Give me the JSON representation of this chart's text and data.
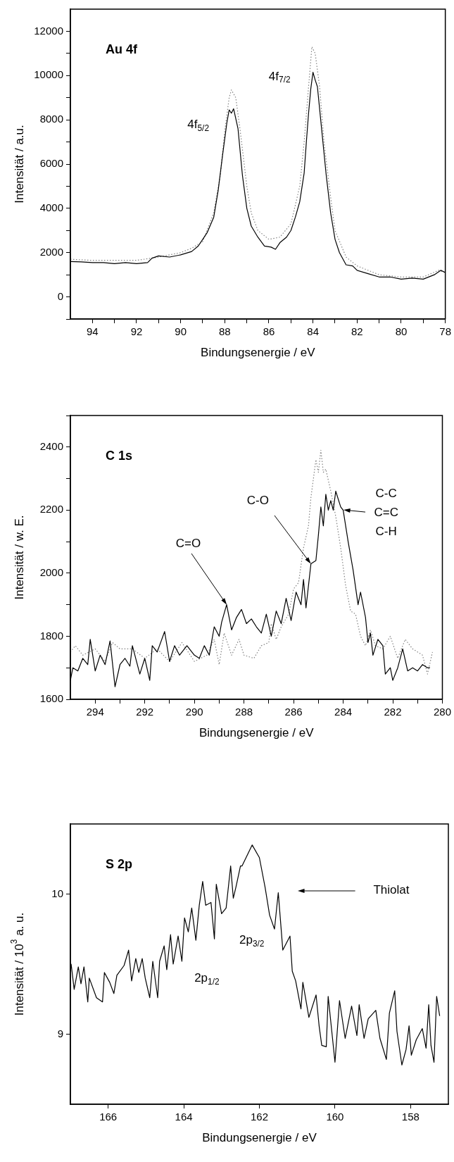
{
  "chart_data": [
    {
      "type": "line",
      "title": "Au 4f",
      "xlabel": "Bindungsenergie / eV",
      "ylabel": "Intensität / a.u.",
      "marker": "none",
      "xlim": [
        95,
        78
      ],
      "xticks": [
        94,
        {
          "value": 93,
          "label": null
        },
        92,
        {
          "value": 91,
          "label": null
        },
        90,
        {
          "value": 89,
          "label": null
        },
        88,
        {
          "value": 87,
          "label": null
        },
        86,
        {
          "value": 85,
          "label": null
        },
        84,
        {
          "value": 83,
          "label": null
        },
        82,
        {
          "value": 81,
          "label": null
        },
        80,
        {
          "value": 79,
          "label": null
        },
        78
      ],
      "ylim": [
        -1000,
        13000
      ],
      "yticks": [
        {
          "value": -1000,
          "label": null
        },
        0,
        {
          "value": 1000,
          "label": null
        },
        2000,
        {
          "value": 3000,
          "label": null
        },
        4000,
        {
          "value": 5000,
          "label": null
        },
        6000,
        {
          "value": 7000,
          "label": null
        },
        8000,
        {
          "value": 9000,
          "label": null
        },
        10000,
        {
          "value": 11000,
          "label": null
        },
        12000
      ],
      "series": [
        {
          "color": "#000000",
          "line_style": "solid",
          "x": [
            95,
            94.5,
            94,
            93.5,
            93,
            92.5,
            92,
            91.5,
            91.3,
            91,
            90.5,
            90,
            89.5,
            89.2,
            89,
            88.8,
            88.5,
            88.3,
            88.1,
            87.9,
            87.8,
            87.7,
            87.6,
            87.4,
            87.2,
            87,
            86.8,
            86.5,
            86.2,
            85.9,
            85.7,
            85.5,
            85.2,
            85,
            84.8,
            84.6,
            84.4,
            84.3,
            84.2,
            84.1,
            84,
            83.9,
            83.8,
            83.6,
            83.4,
            83.2,
            83,
            82.8,
            82.5,
            82.2,
            82,
            81.5,
            81,
            80.5,
            80,
            79.5,
            79,
            78.5,
            78.2,
            78
          ],
          "values": [
            1600,
            1580,
            1550,
            1550,
            1500,
            1550,
            1500,
            1550,
            1750,
            1850,
            1800,
            1900,
            2050,
            2300,
            2600,
            2900,
            3600,
            4800,
            6400,
            7900,
            8450,
            8300,
            8500,
            7600,
            5500,
            4000,
            3200,
            2700,
            2300,
            2250,
            2150,
            2450,
            2700,
            3000,
            3600,
            4300,
            5600,
            7000,
            8300,
            9400,
            10150,
            9800,
            9500,
            7500,
            5500,
            3800,
            2600,
            2000,
            1450,
            1400,
            1200,
            1050,
            900,
            900,
            800,
            850,
            800,
            1000,
            1200,
            1100
          ]
        },
        {
          "color": "#808080",
          "line_style": "dotted",
          "x": [
            95,
            94,
            93,
            92,
            91,
            90,
            89.5,
            89,
            88.5,
            88.2,
            88,
            87.8,
            87.7,
            87.5,
            87.3,
            87,
            86.8,
            86.5,
            86,
            85.5,
            85,
            84.6,
            84.4,
            84.2,
            84.05,
            83.9,
            83.7,
            83.5,
            83.2,
            83,
            82.5,
            82,
            81,
            80,
            79,
            78.3,
            78
          ],
          "values": [
            1700,
            1650,
            1650,
            1650,
            1800,
            2000,
            2200,
            2500,
            3800,
            5500,
            7500,
            9000,
            9350,
            9000,
            7500,
            5000,
            3800,
            3000,
            2600,
            2700,
            3300,
            5000,
            7000,
            9500,
            11300,
            11000,
            9500,
            7000,
            4500,
            3000,
            1800,
            1400,
            1000,
            900,
            900,
            1200,
            1100
          ]
        }
      ],
      "annotations": [
        "4f$_{5/2}$",
        "4f$_{7/2}$"
      ]
    },
    {
      "type": "line",
      "title": "C 1s",
      "xlabel": "Bindungsenergie / eV",
      "ylabel": "Intensität / w. E.",
      "marker": "none",
      "xlim": [
        295,
        280
      ],
      "xticks": [
        294,
        {
          "value": 293,
          "label": null
        },
        292,
        {
          "value": 291,
          "label": null
        },
        290,
        {
          "value": 289,
          "label": null
        },
        288,
        {
          "value": 287,
          "label": null
        },
        286,
        {
          "value": 285,
          "label": null
        },
        284,
        {
          "value": 283,
          "label": null
        },
        282,
        {
          "value": 281,
          "label": null
        },
        280
      ],
      "ylim": [
        1600,
        2500
      ],
      "yticks": [
        1600,
        {
          "value": 1700,
          "label": null
        },
        1800,
        {
          "value": 1900,
          "label": null
        },
        2000,
        {
          "value": 2100,
          "label": null
        },
        2200,
        {
          "value": 2300,
          "label": null
        },
        2400,
        {
          "value": 2500,
          "label": null
        }
      ],
      "series": [
        {
          "color": "#000000",
          "line_style": "solid",
          "x": [
            295,
            294.9,
            294.7,
            294.5,
            294.3,
            294.2,
            294,
            293.8,
            293.6,
            293.4,
            293.2,
            293,
            292.8,
            292.6,
            292.5,
            292.2,
            292,
            291.8,
            291.7,
            291.5,
            291.2,
            291,
            290.8,
            290.6,
            290.3,
            290,
            289.8,
            289.6,
            289.4,
            289.2,
            289,
            288.9,
            288.7,
            288.5,
            288.3,
            288.1,
            287.9,
            287.7,
            287.5,
            287.3,
            287.1,
            286.9,
            286.7,
            286.5,
            286.3,
            286.1,
            285.9,
            285.7,
            285.6,
            285.5,
            285.3,
            285.1,
            285,
            284.9,
            284.8,
            284.7,
            284.6,
            284.5,
            284.4,
            284.3,
            284.1,
            284,
            283.8,
            283.6,
            283.4,
            283.3,
            283.1,
            283,
            282.9,
            282.8,
            282.6,
            282.4,
            282.3,
            282.1,
            282,
            281.8,
            281.6,
            281.4,
            281.2,
            281,
            280.8,
            280.6,
            280.5
          ],
          "values": [
            1660,
            1700,
            1690,
            1730,
            1710,
            1790,
            1690,
            1740,
            1710,
            1785,
            1640,
            1710,
            1730,
            1705,
            1770,
            1680,
            1730,
            1660,
            1770,
            1750,
            1815,
            1720,
            1770,
            1740,
            1770,
            1740,
            1730,
            1770,
            1740,
            1830,
            1800,
            1845,
            1900,
            1820,
            1860,
            1885,
            1840,
            1855,
            1830,
            1810,
            1870,
            1800,
            1880,
            1840,
            1920,
            1850,
            1940,
            1900,
            1980,
            1890,
            2030,
            2040,
            2120,
            2210,
            2150,
            2250,
            2200,
            2230,
            2200,
            2260,
            2210,
            2200,
            2100,
            2010,
            1900,
            1940,
            1860,
            1780,
            1810,
            1740,
            1790,
            1770,
            1680,
            1700,
            1660,
            1700,
            1760,
            1690,
            1700,
            1690,
            1710,
            1700,
            1700
          ]
        },
        {
          "color": "#808080",
          "line_style": "dotted",
          "x": [
            295,
            294.8,
            294.5,
            294,
            293.6,
            293.3,
            293,
            292.5,
            292,
            291.5,
            291,
            290.5,
            290,
            289.5,
            289.2,
            289,
            288.8,
            288.5,
            288.2,
            288,
            287.6,
            287.3,
            287,
            286.9,
            286.7,
            286.5,
            286.2,
            286,
            285.8,
            285.6,
            285.4,
            285.3,
            285.1,
            285,
            284.9,
            284.8,
            284.7,
            284.5,
            284.3,
            284.1,
            283.9,
            283.7,
            283.5,
            283.3,
            283.1,
            282.9,
            282.7,
            282.4,
            282.1,
            281.8,
            281.5,
            281.2,
            281,
            280.8,
            280.6,
            280.4
          ],
          "values": [
            1750,
            1770,
            1740,
            1760,
            1720,
            1780,
            1760,
            1760,
            1730,
            1760,
            1720,
            1780,
            1720,
            1740,
            1790,
            1710,
            1810,
            1740,
            1790,
            1740,
            1730,
            1770,
            1780,
            1840,
            1790,
            1830,
            1870,
            1950,
            1970,
            2080,
            2150,
            2240,
            2360,
            2320,
            2390,
            2320,
            2330,
            2260,
            2180,
            2080,
            1960,
            1880,
            1870,
            1800,
            1770,
            1820,
            1770,
            1760,
            1800,
            1730,
            1790,
            1760,
            1750,
            1740,
            1680,
            1750
          ]
        }
      ],
      "annotations": [
        {
          "text": "C=O",
          "x": 288.7,
          "y": 1900
        },
        {
          "text": "C-O",
          "x": 285.3,
          "y": 2030
        },
        {
          "text": "C-C\nC=C\nC-H",
          "x": 284,
          "y": 2200
        }
      ]
    },
    {
      "type": "line",
      "title": "S 2p",
      "xlabel": "Bindungsenergie / eV",
      "ylabel": "Intensität / 10$^{3}$ a. u.",
      "marker": "none",
      "xlim": [
        167,
        157
      ],
      "xticks": [
        166,
        164,
        162,
        160,
        158
      ],
      "ylim": [
        8.5,
        10.5
      ],
      "yticks": [
        9,
        10
      ],
      "series": [
        {
          "color": "#000000",
          "line_style": "solid",
          "x": [
            167,
            166.98,
            166.9,
            166.79,
            166.72,
            166.64,
            166.54,
            166.5,
            166.31,
            166.15,
            166.1,
            165.96,
            165.85,
            165.77,
            165.58,
            165.46,
            165.38,
            165.27,
            165.19,
            165.1,
            165.02,
            164.9,
            164.82,
            164.69,
            164.64,
            164.52,
            164.45,
            164.35,
            164.28,
            164.15,
            164.05,
            163.98,
            163.88,
            163.79,
            163.68,
            163.59,
            163.5,
            163.42,
            163.28,
            163.19,
            163.14,
            163,
            162.88,
            162.76,
            162.69,
            162.62,
            162.5,
            162.46,
            162.19,
            162,
            161.85,
            161.73,
            161.6,
            161.5,
            161.38,
            161.19,
            161.13,
            161.04,
            160.9,
            160.85,
            160.69,
            160.5,
            160.42,
            160.35,
            160.23,
            160.18,
            160,
            159.88,
            159.73,
            159.56,
            159.42,
            159.36,
            159.23,
            159.12,
            158.92,
            158.81,
            158.64,
            158.56,
            158.42,
            158.36,
            158.23,
            158.12,
            158.04,
            157.98,
            157.85,
            157.69,
            157.59,
            157.52,
            157.46,
            157.38,
            157.31,
            157.23
          ],
          "values": [
            9.45,
            9.5,
            9.32,
            9.48,
            9.36,
            9.48,
            9.23,
            9.4,
            9.26,
            9.23,
            9.44,
            9.37,
            9.29,
            9.42,
            9.49,
            9.6,
            9.38,
            9.54,
            9.44,
            9.54,
            9.4,
            9.26,
            9.52,
            9.26,
            9.52,
            9.63,
            9.46,
            9.71,
            9.5,
            9.7,
            9.52,
            9.83,
            9.73,
            9.9,
            9.67,
            9.92,
            10.09,
            9.92,
            9.94,
            9.68,
            10.07,
            9.86,
            9.9,
            10.2,
            9.97,
            10.05,
            10.2,
            10.2,
            10.35,
            10.26,
            10.05,
            9.85,
            9.75,
            10.01,
            9.6,
            9.7,
            9.45,
            9.38,
            9.18,
            9.37,
            9.12,
            9.28,
            9.06,
            8.92,
            8.91,
            9.27,
            8.8,
            9.24,
            8.97,
            9.2,
            8.99,
            9.21,
            8.97,
            9.11,
            9.17,
            8.97,
            8.82,
            9.15,
            9.31,
            9.02,
            8.78,
            8.89,
            9.06,
            8.85,
            8.96,
            9.04,
            8.9,
            9.21,
            8.92,
            8.8,
            9.27,
            9.13
          ]
        }
      ],
      "annotations": [
        "2p$_{3/2}$",
        "2p$_{1/2}$",
        "Thiolat"
      ]
    }
  ]
}
